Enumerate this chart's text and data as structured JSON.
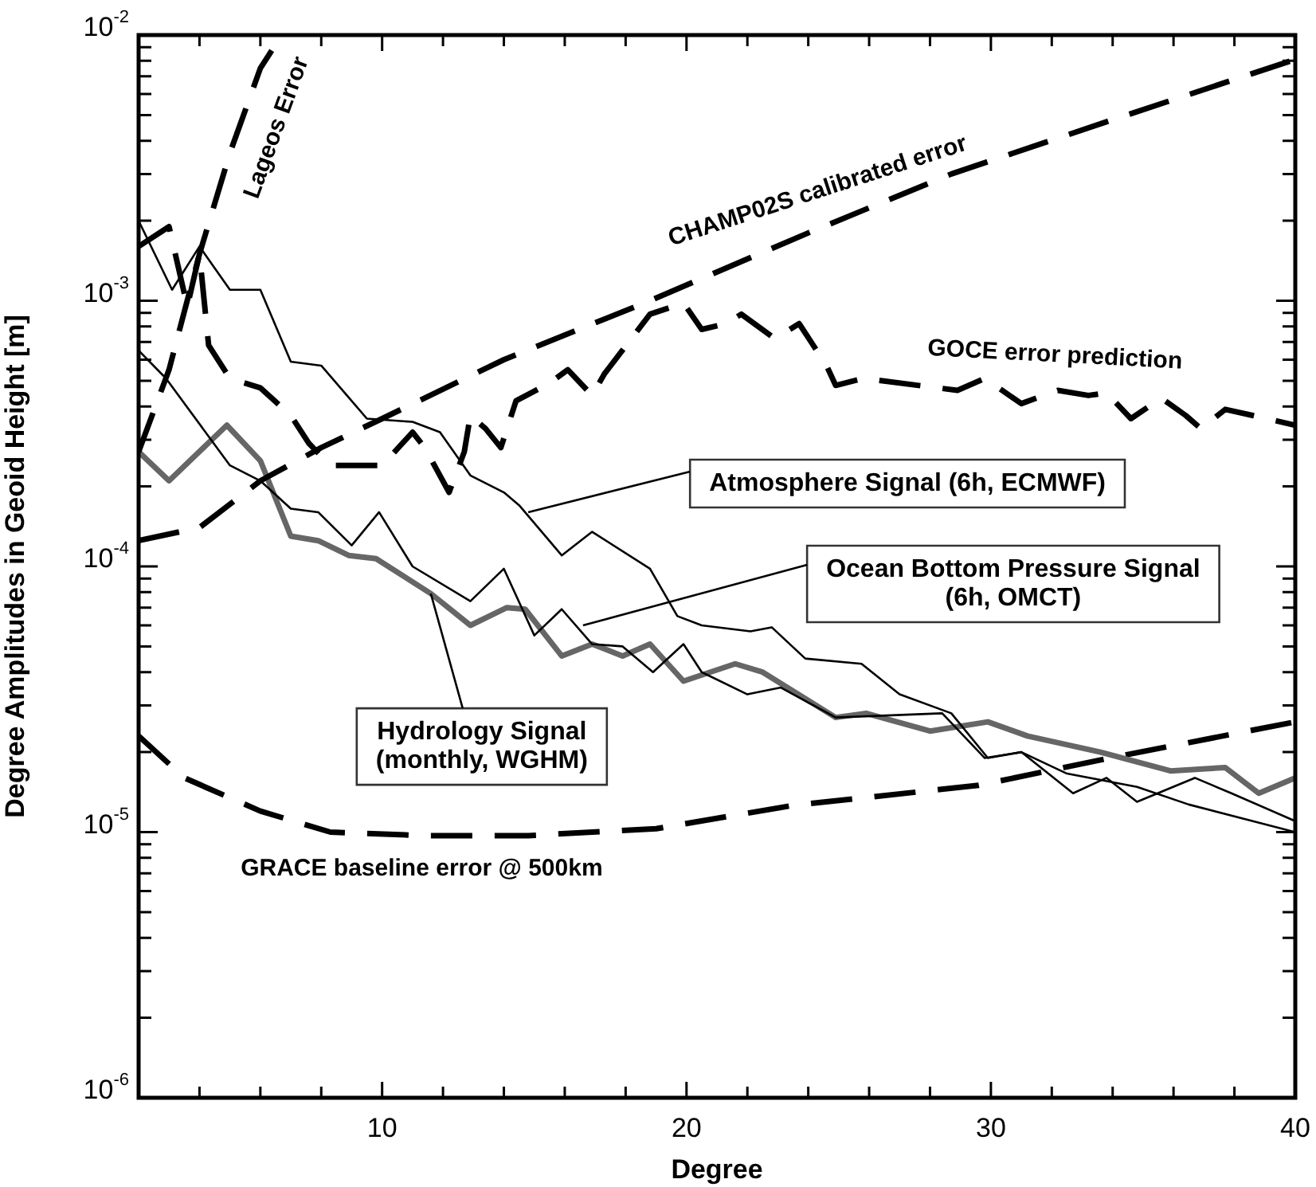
{
  "chart_data": {
    "type": "line",
    "xlabel": "Degree",
    "ylabel": "Degree Amplitudes in Geoid Height [m]",
    "log": "y",
    "grid": false,
    "legend": false,
    "marker": "none",
    "xlim": [
      2,
      40
    ],
    "xticks": [
      {
        "value": 4,
        "label": null
      },
      {
        "value": 6,
        "label": null
      },
      {
        "value": 8,
        "label": null
      },
      10,
      {
        "value": 12,
        "label": null
      },
      {
        "value": 14,
        "label": null
      },
      {
        "value": 16,
        "label": null
      },
      {
        "value": 18,
        "label": null
      },
      20,
      {
        "value": 22,
        "label": null
      },
      {
        "value": 24,
        "label": null
      },
      {
        "value": 26,
        "label": null
      },
      {
        "value": 28,
        "label": null
      },
      30,
      {
        "value": 32,
        "label": null
      },
      {
        "value": 34,
        "label": null
      },
      {
        "value": 36,
        "label": null
      },
      {
        "value": 38,
        "label": null
      },
      40
    ],
    "ylim": [
      1e-06,
      0.01
    ],
    "yticks": [
      {
        "value": 1e-06,
        "label": "10$^{-6}$"
      },
      {
        "value": 2e-06,
        "label": null
      },
      {
        "value": 3e-06,
        "label": null
      },
      {
        "value": 4e-06,
        "label": null
      },
      {
        "value": 5e-06,
        "label": null
      },
      {
        "value": 6e-06,
        "label": null
      },
      {
        "value": 7e-06,
        "label": null
      },
      {
        "value": 8e-06,
        "label": null
      },
      {
        "value": 9e-06,
        "label": null
      },
      {
        "value": 1e-05,
        "label": "10$^{-5}$"
      },
      {
        "value": 2e-05,
        "label": null
      },
      {
        "value": 3e-05,
        "label": null
      },
      {
        "value": 4e-05,
        "label": null
      },
      {
        "value": 5e-05,
        "label": null
      },
      {
        "value": 6e-05,
        "label": null
      },
      {
        "value": 7e-05,
        "label": null
      },
      {
        "value": 8e-05,
        "label": null
      },
      {
        "value": 9e-05,
        "label": null
      },
      {
        "value": 0.0001,
        "label": "10$^{-4}$"
      },
      {
        "value": 0.0002,
        "label": null
      },
      {
        "value": 0.0003,
        "label": null
      },
      {
        "value": 0.0004,
        "label": null
      },
      {
        "value": 0.0005,
        "label": null
      },
      {
        "value": 0.0006,
        "label": null
      },
      {
        "value": 0.0007,
        "label": null
      },
      {
        "value": 0.0008,
        "label": null
      },
      {
        "value": 0.0009,
        "label": null
      },
      {
        "value": 0.001,
        "label": "10$^{-3}$"
      },
      {
        "value": 0.002,
        "label": null
      },
      {
        "value": 0.003,
        "label": null
      },
      {
        "value": 0.004,
        "label": null
      },
      {
        "value": 0.005,
        "label": null
      },
      {
        "value": 0.006,
        "label": null
      },
      {
        "value": 0.007,
        "label": null
      },
      {
        "value": 0.008,
        "label": null
      },
      {
        "value": 0.009,
        "label": null
      },
      {
        "value": 0.01,
        "label": "10$^{-2}$"
      }
    ],
    "series": [
      {
        "color": "#000000",
        "line_style": "dashed",
        "x": [
          2,
          3,
          4,
          5,
          6,
          6.7
        ],
        "values": [
          0.00027,
          0.00055,
          0.0015,
          0.0036,
          0.0075,
          0.01
        ]
      },
      {
        "color": "#000000",
        "line_style": "dashed",
        "x": [
          2,
          4,
          6,
          8,
          10,
          14,
          18.8,
          24,
          28.7,
          34,
          40
        ],
        "values": [
          0.000125,
          0.00014,
          0.00021,
          0.00028,
          0.00036,
          0.0006,
          0.001,
          0.0018,
          0.003,
          0.0048,
          0.0081
        ]
      },
      {
        "color": "#000000",
        "line_style": "dashed",
        "x": [
          2,
          3,
          3.6,
          4,
          4.3,
          5,
          6,
          7,
          7.6,
          8.3,
          10,
          11,
          11.4,
          12.2,
          12.7,
          12.9,
          13.4,
          13.9,
          14.4,
          15.5,
          16.1,
          16.9,
          17.3,
          18.8,
          19.9,
          20.5,
          21.3,
          21.8,
          22.9,
          23.7,
          24.6,
          24.9,
          25.8,
          28.9,
          29.8,
          31,
          32.2,
          33.2,
          33.8,
          34.6,
          35.6,
          36.4,
          36.9,
          37.7,
          38.6,
          40
        ],
        "values": [
          0.0016,
          0.0019,
          0.00095,
          0.0015,
          0.00068,
          0.00051,
          0.00047,
          0.00037,
          0.00029,
          0.00024,
          0.00024,
          0.00032,
          0.00028,
          0.00019,
          0.00027,
          0.00037,
          0.00033,
          0.00028,
          0.00042,
          0.00049,
          0.00055,
          0.00044,
          0.00053,
          0.00089,
          0.00098,
          0.00078,
          0.00082,
          0.00089,
          0.00072,
          0.00082,
          0.00057,
          0.00048,
          0.00051,
          0.00046,
          0.00051,
          0.00041,
          0.00046,
          0.00044,
          0.00045,
          0.00036,
          0.00043,
          0.00037,
          0.00033,
          0.00039,
          0.00037,
          0.00034
        ]
      },
      {
        "color": "#000000",
        "line_style": "solid",
        "x": [
          2,
          3.1,
          4,
          5,
          6,
          7,
          8,
          9.5,
          11,
          11.9,
          12.9,
          14,
          14.5,
          15.9,
          16.9,
          18.8,
          19.7,
          20.5,
          22.1,
          22.8,
          23.9,
          25.75,
          27,
          28.7,
          29.9,
          31,
          32.5,
          34.8,
          36.5,
          40
        ],
        "values": [
          0.002,
          0.0011,
          0.0016,
          0.0011,
          0.0011,
          0.00059,
          0.00057,
          0.00036,
          0.00035,
          0.00032,
          0.00022,
          0.00019,
          0.00017,
          0.00011,
          0.000135,
          9.8e-05,
          6.5e-05,
          6e-05,
          5.7e-05,
          5.9e-05,
          4.5e-05,
          4.3e-05,
          3.3e-05,
          2.8e-05,
          1.9e-05,
          2e-05,
          1.66e-05,
          1.48e-05,
          1.27e-05,
          1e-05
        ]
      },
      {
        "color": "#000000",
        "line_style": "solid",
        "x": [
          2,
          2.9,
          5,
          6,
          7,
          7.9,
          9,
          9.9,
          11,
          12.9,
          14,
          15,
          15.9,
          16.9,
          17.9,
          18.9,
          19.9,
          20.5,
          22,
          23.1,
          24.9,
          28.4,
          29.8,
          31,
          32.7,
          33.8,
          34.8,
          36.7,
          37.9,
          40
        ],
        "values": [
          0.00065,
          0.00051,
          0.00024,
          0.00021,
          0.000165,
          0.00016,
          0.00012,
          0.00016,
          0.0001,
          7.4e-05,
          9.8e-05,
          5.5e-05,
          6.9e-05,
          5.1e-05,
          5e-05,
          4e-05,
          5.1e-05,
          4e-05,
          3.3e-05,
          3.5e-05,
          2.7e-05,
          2.8e-05,
          1.9e-05,
          2e-05,
          1.4e-05,
          1.6e-05,
          1.3e-05,
          1.6e-05,
          1.4e-05,
          1.1e-05
        ]
      },
      {
        "color": "#666666",
        "line_style": "solid",
        "x": [
          2,
          3,
          4.9,
          6,
          7,
          7.9,
          8.9,
          9.8,
          11.6,
          12.9,
          14.1,
          14.7,
          15.9,
          16.9,
          17.9,
          18.8,
          19.9,
          21.6,
          22.5,
          24.9,
          25.9,
          28,
          29.9,
          31.2,
          33.6,
          35.9,
          37.7,
          38.8,
          40
        ],
        "values": [
          0.00027,
          0.00021,
          0.00034,
          0.00025,
          0.00013,
          0.000125,
          0.00011,
          0.000107,
          7.9e-05,
          6e-05,
          7e-05,
          6.9e-05,
          4.6e-05,
          5.1e-05,
          4.6e-05,
          5.1e-05,
          3.7e-05,
          4.3e-05,
          4e-05,
          2.7e-05,
          2.8e-05,
          2.4e-05,
          2.6e-05,
          2.3e-05,
          2e-05,
          1.7e-05,
          1.75e-05,
          1.4e-05,
          1.6e-05
        ]
      },
      {
        "color": "#000000",
        "line_style": "dashed",
        "x": [
          2,
          3.5,
          6,
          8.3,
          11.4,
          14.8,
          19,
          23.5,
          29.6,
          33.9,
          40
        ],
        "values": [
          2.3e-05,
          1.6e-05,
          1.2e-05,
          1e-05,
          9.7e-06,
          9.7e-06,
          1.03e-05,
          1.26e-05,
          1.5e-05,
          1.9e-05,
          2.6e-05
        ]
      }
    ],
    "annotations": [
      {
        "text": "Lageos Error",
        "x": 5.6,
        "y": 0.005
      },
      {
        "text": "CHAMP02S calibrated error",
        "x": 24,
        "y": 0.0018
      },
      {
        "text": "GOCE error prediction",
        "x": 32,
        "y": 0.00046
      },
      {
        "text": "Atmosphere Signal (6h, ECMWF)",
        "x": 14.8,
        "y": 0.00016
      },
      {
        "text": "Ocean Bottom Pressure Signal\n(6h, OMCT)",
        "x": 16.6,
        "y": 6e-05
      },
      {
        "text": "Hydrology Signal\n(monthly, WGHM)",
        "x": 11.6,
        "y": 7.9e-05
      },
      {
        "text": "GRACE baseline error @ 500km",
        "x": 11.3,
        "y": 9.7e-06
      }
    ]
  }
}
